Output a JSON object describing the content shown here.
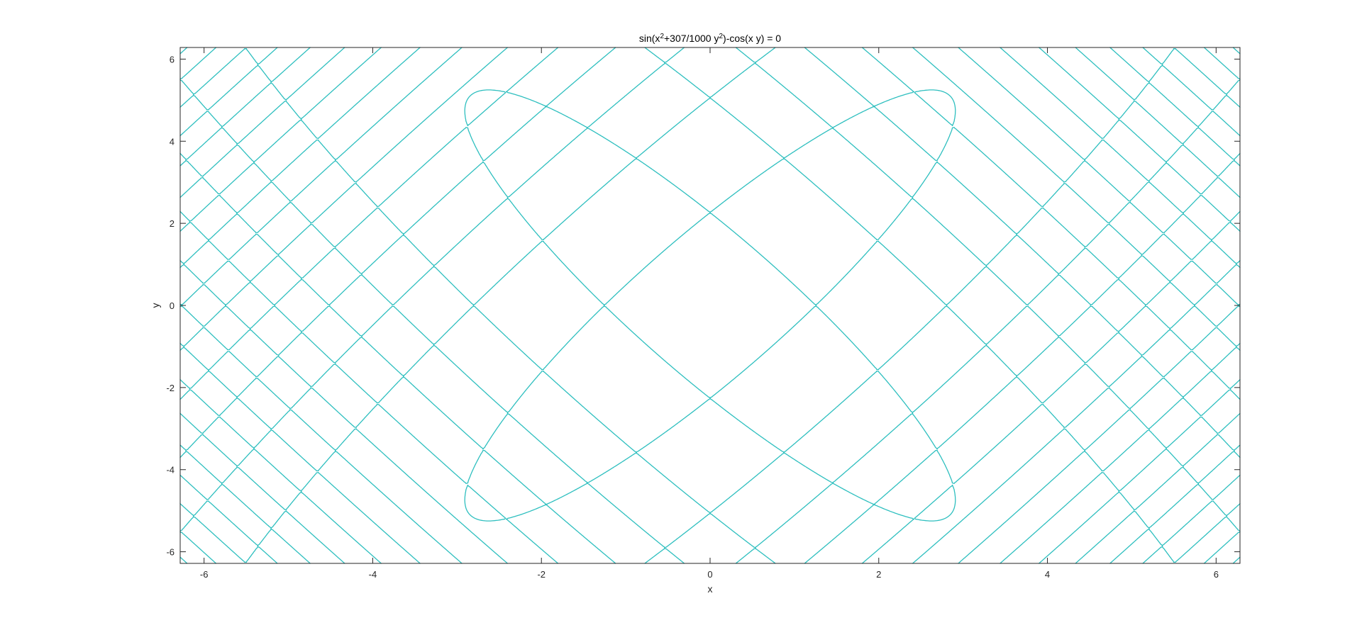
{
  "chart_data": {
    "type": "implicit-contour",
    "title": {
      "prefix": "sin(x",
      "sup1": "2",
      "middle": "+307/1000 y",
      "sup2": "2",
      "suffix": ")-cos(x y) = 0"
    },
    "equation": "sin(x^2 + 307/1000 * y^2) - cos(x * y) = 0",
    "coef": 0.307,
    "xlabel": "x",
    "ylabel": "y",
    "xlim": [
      -6.2832,
      6.2832
    ],
    "ylim": [
      -6.2832,
      6.2832
    ],
    "xticks": [
      -6,
      -4,
      -2,
      0,
      2,
      4,
      6
    ],
    "yticks": [
      -6,
      -4,
      -2,
      0,
      2,
      4,
      6
    ],
    "xtick_labels": [
      "-6",
      "-4",
      "-2",
      "0",
      "2",
      "4",
      "6"
    ],
    "ytick_labels": [
      "-6",
      "-4",
      "-2",
      "0",
      "2",
      "4",
      "6"
    ],
    "grid": false,
    "box": true,
    "line_color": "#2ebfbf"
  }
}
